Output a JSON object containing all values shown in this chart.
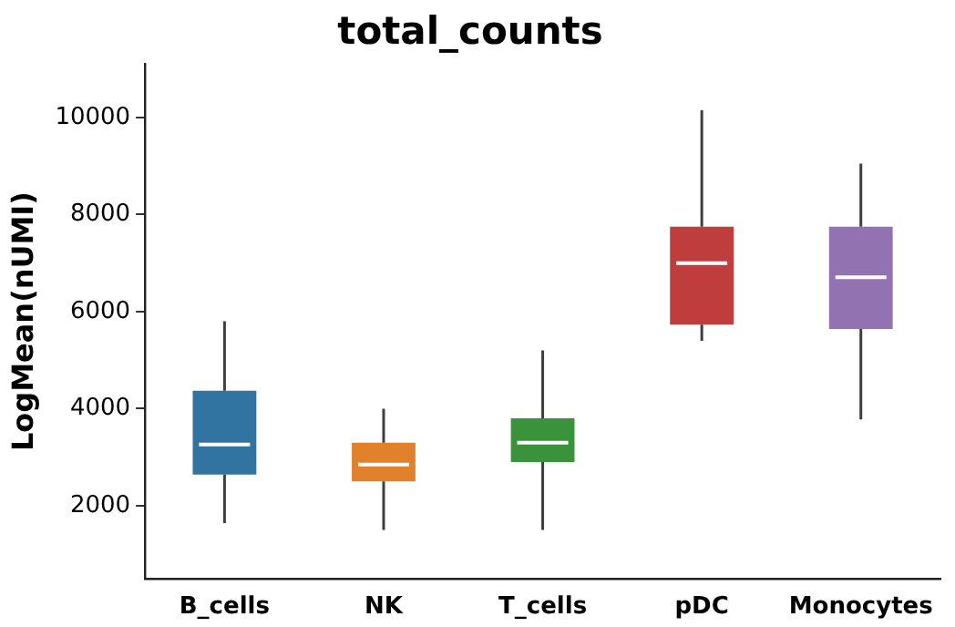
{
  "chart_data": {
    "type": "box",
    "title": "total_counts",
    "ylabel": "LogMean(nUMI)",
    "categories": [
      "B_cells",
      "NK",
      "T_cells",
      "pDC",
      "Monocytes"
    ],
    "colors": [
      "#3274a1",
      "#e1812c",
      "#3a923a",
      "#c03d3e",
      "#9372b2"
    ],
    "boxes": [
      {
        "low": 1640,
        "q1": 2640,
        "median": 3260,
        "q3": 4370,
        "high": 5800
      },
      {
        "low": 1500,
        "q1": 2500,
        "median": 2850,
        "q3": 3300,
        "high": 4000
      },
      {
        "low": 1500,
        "q1": 2900,
        "median": 3300,
        "q3": 3800,
        "high": 5200
      },
      {
        "low": 5400,
        "q1": 5730,
        "median": 7000,
        "q3": 7750,
        "high": 10150
      },
      {
        "low": 3780,
        "q1": 5640,
        "median": 6710,
        "q3": 7750,
        "high": 9050
      }
    ],
    "ylim": [
      500,
      11100
    ],
    "yticks": [
      2000,
      4000,
      6000,
      8000,
      10000
    ],
    "grid": false,
    "legend": false
  }
}
